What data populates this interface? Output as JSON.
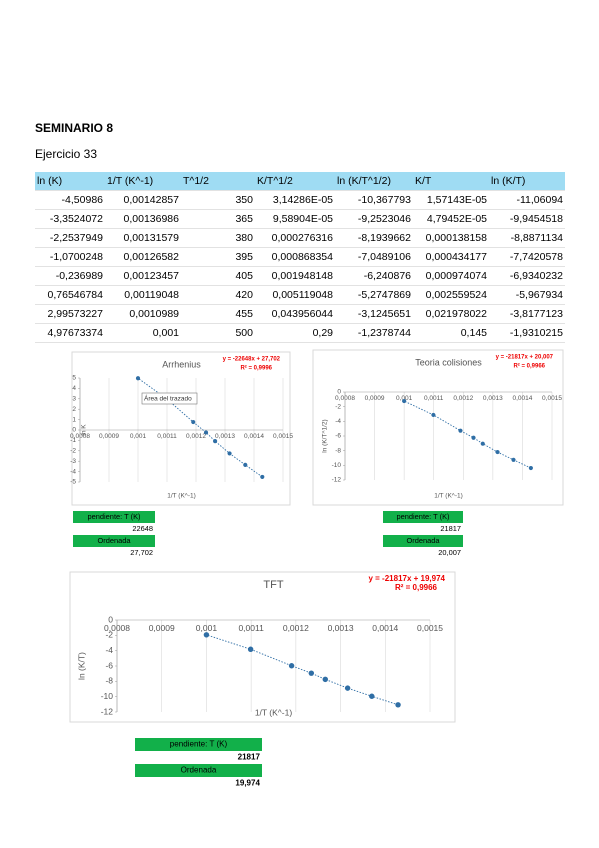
{
  "header": {
    "title": "SEMINARIO 8",
    "subtitle": "Ejercicio 33"
  },
  "table": {
    "columns": [
      "ln (K)",
      "1/T (K^-1)",
      "T^1/2",
      "K/T^1/2",
      "ln (K/T^1/2)",
      "K/T",
      "ln (K/T)"
    ],
    "rows": [
      [
        "-4,50986",
        "0,00142857",
        "350",
        "3,14286E-05",
        "-10,367793",
        "1,57143E-05",
        "-11,06094"
      ],
      [
        "-3,3524072",
        "0,00136986",
        "365",
        "9,58904E-05",
        "-9,2523046",
        "4,79452E-05",
        "-9,9454518"
      ],
      [
        "-2,2537949",
        "0,00131579",
        "380",
        "0,000276316",
        "-8,1939662",
        "0,000138158",
        "-8,8871134"
      ],
      [
        "-1,0700248",
        "0,00126582",
        "395",
        "0,000868354",
        "-7,0489106",
        "0,000434177",
        "-7,7420578"
      ],
      [
        "-0,236989",
        "0,00123457",
        "405",
        "0,001948148",
        "-6,240876",
        "0,000974074",
        "-6,9340232"
      ],
      [
        "0,76546784",
        "0,00119048",
        "420",
        "0,005119048",
        "-5,2747869",
        "0,002559524",
        "-5,967934"
      ],
      [
        "2,99573227",
        "0,0010989",
        "455",
        "0,043956044",
        "-3,1245651",
        "0,021978022",
        "-3,8177123"
      ],
      [
        "4,97673374",
        "0,001",
        "500",
        "0,29",
        "-1,2378744",
        "0,145",
        "-1,9310215"
      ]
    ]
  },
  "chart_data": [
    {
      "type": "scatter",
      "title": "Arrhenius",
      "equation": "y = -22648x + 27,702",
      "r2": "R² = 0,9996",
      "x_label": "1/T (K^-1)",
      "y_label": "ln K",
      "tooltip": "Área del trazado",
      "color": "#2f6ea5",
      "x": [
        0.00142857,
        0.00136986,
        0.00131579,
        0.00126582,
        0.00123457,
        0.00119048,
        0.0010989,
        0.001
      ],
      "y": [
        -4.50986,
        -3.3524072,
        -2.2537949,
        -1.0700248,
        -0.236989,
        0.76546784,
        2.99573227,
        4.97673374
      ],
      "xlim": [
        0.0008,
        0.0015
      ],
      "xticks": [
        {
          "value": 0.0008,
          "label": "0,0008"
        },
        {
          "value": 0.0009,
          "label": "0,0009"
        },
        {
          "value": 0.001,
          "label": "0,001"
        },
        {
          "value": 0.0011,
          "label": "0,0011"
        },
        {
          "value": 0.0012,
          "label": "0,0012"
        },
        {
          "value": 0.0013,
          "label": "0,0013"
        },
        {
          "value": 0.0014,
          "label": "0,0014"
        },
        {
          "value": 0.0015,
          "label": "0,0015"
        }
      ],
      "ylim": [
        -5,
        5
      ],
      "yticks": [
        -5,
        -4,
        -3,
        -2,
        -1,
        0,
        1,
        2,
        3,
        4,
        5
      ],
      "summary": {
        "slope_label": "pendiente: T (K)",
        "slope": "22648",
        "intercept_label": "Ordenada",
        "intercept": "27,702"
      }
    },
    {
      "type": "scatter",
      "title": "Teoria colisiones",
      "equation": "y = -21817x + 20,007",
      "r2": "R² = 0,9966",
      "x_label": "1/T (K^-1)",
      "y_label": "ln (K/T^1/2)",
      "color": "#2f6ea5",
      "x": [
        0.00142857,
        0.00136986,
        0.00131579,
        0.00126582,
        0.00123457,
        0.00119048,
        0.0010989,
        0.001
      ],
      "y": [
        -10.367793,
        -9.2523046,
        -8.1939662,
        -7.0489106,
        -6.240876,
        -5.2747869,
        -3.1245651,
        -1.2378744
      ],
      "xlim": [
        0.0008,
        0.0015
      ],
      "xticks": [
        {
          "value": 0.0008,
          "label": "0,0008"
        },
        {
          "value": 0.0009,
          "label": "0,0009"
        },
        {
          "value": 0.001,
          "label": "0,001"
        },
        {
          "value": 0.0011,
          "label": "0,0011"
        },
        {
          "value": 0.0012,
          "label": "0,0012"
        },
        {
          "value": 0.0013,
          "label": "0,0013"
        },
        {
          "value": 0.0014,
          "label": "0,0014"
        },
        {
          "value": 0.0015,
          "label": "0,0015"
        }
      ],
      "ylim": [
        -12,
        0
      ],
      "yticks": [
        -12,
        -10,
        -8,
        -6,
        -4,
        -2,
        0
      ],
      "summary": {
        "slope_label": "pendiente: T (K)",
        "slope": "21817",
        "intercept_label": "Ordenada",
        "intercept": "20,007"
      }
    },
    {
      "type": "scatter",
      "title": "TFT",
      "equation": "y = -21817x + 19,974",
      "r2": "R² = 0,9966",
      "x_label": "1/T (K^-1)",
      "y_label": "ln (K/T)",
      "color": "#2f6ea5",
      "x": [
        0.00142857,
        0.00136986,
        0.00131579,
        0.00126582,
        0.00123457,
        0.00119048,
        0.0010989,
        0.001
      ],
      "y": [
        -11.06094,
        -9.9454518,
        -8.8871134,
        -7.7420578,
        -6.9340232,
        -5.967934,
        -3.8177123,
        -1.9310215
      ],
      "xlim": [
        0.0008,
        0.0015
      ],
      "xticks": [
        {
          "value": 0.0008,
          "label": "0,0008"
        },
        {
          "value": 0.0009,
          "label": "0,0009"
        },
        {
          "value": 0.001,
          "label": "0,001"
        },
        {
          "value": 0.0011,
          "label": "0,0011"
        },
        {
          "value": 0.0012,
          "label": "0,0012"
        },
        {
          "value": 0.0013,
          "label": "0,0013"
        },
        {
          "value": 0.0014,
          "label": "0,0014"
        },
        {
          "value": 0.0015,
          "label": "0,0015"
        }
      ],
      "ylim": [
        -12,
        0
      ],
      "yticks": [
        -12,
        -10,
        -8,
        -6,
        -4,
        -2,
        0
      ],
      "summary": {
        "slope_label": "pendiente: T (K)",
        "slope": "21817",
        "intercept_label": "Ordenada",
        "intercept": "19,974"
      }
    }
  ]
}
